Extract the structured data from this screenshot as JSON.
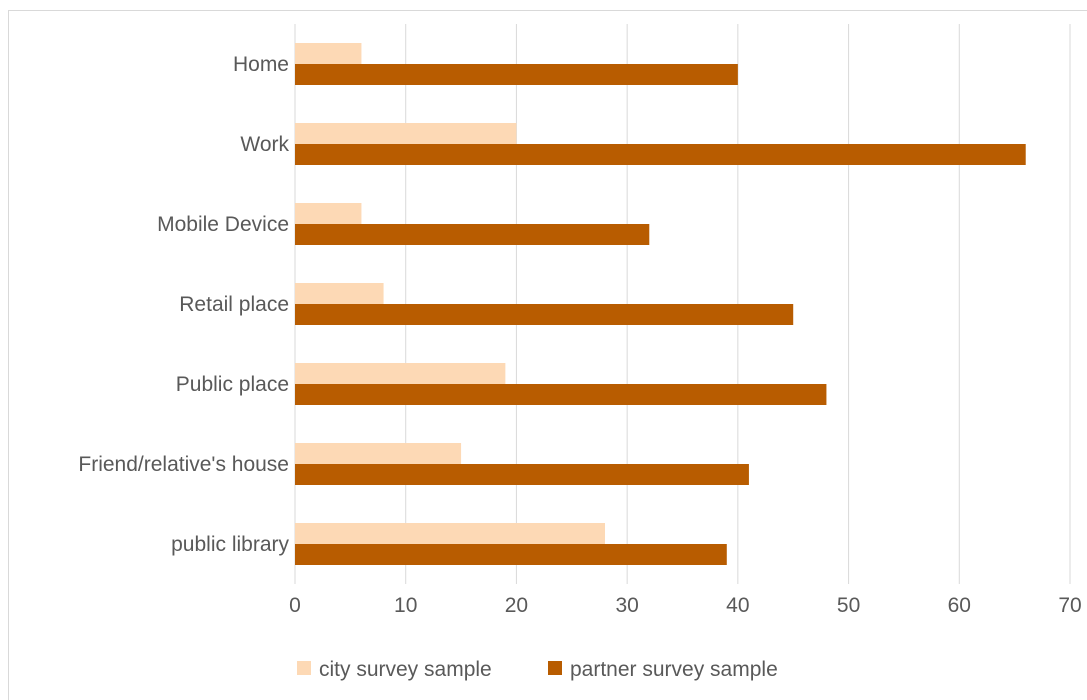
{
  "chart_data": {
    "type": "bar",
    "orientation": "horizontal",
    "categories": [
      "Home",
      "Work",
      "Mobile Device",
      "Retail place",
      "Public place",
      "Friend/relative's house",
      "public library"
    ],
    "series": [
      {
        "name": "city survey sample",
        "values": [
          6,
          20,
          6,
          8,
          19,
          15,
          28
        ],
        "color": "#fdd9b5"
      },
      {
        "name": "partner survey sample",
        "values": [
          40,
          66,
          32,
          45,
          48,
          41,
          39
        ],
        "color": "#b85c00"
      }
    ],
    "xlim": [
      0,
      70
    ],
    "xticks": [
      0,
      10,
      20,
      30,
      40,
      50,
      60,
      70
    ],
    "grid": "vertical",
    "legend": "bottom",
    "title": "",
    "xlabel": "",
    "ylabel": ""
  },
  "colors": {
    "grid": "#d9d9d9",
    "text": "#595959"
  }
}
